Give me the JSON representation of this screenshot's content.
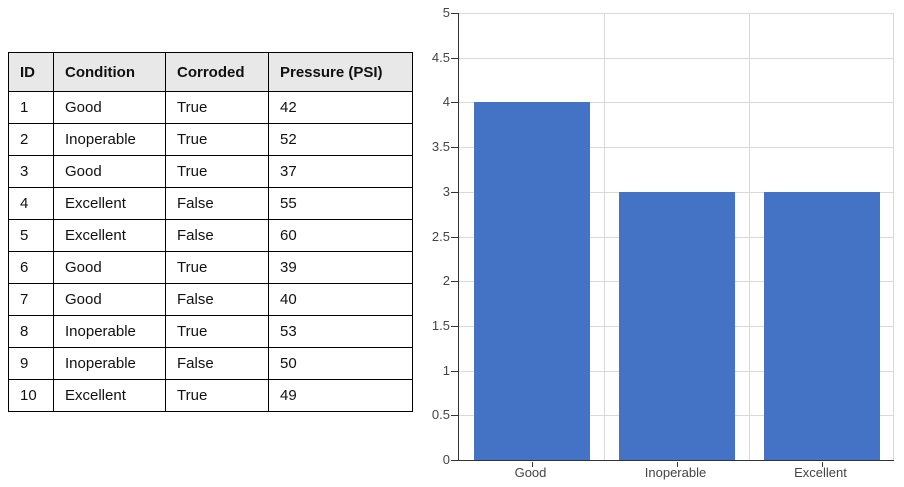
{
  "table": {
    "columns": [
      "ID",
      "Condition",
      "Corroded",
      "Pressure (PSI)"
    ],
    "rows": [
      [
        "1",
        "Good",
        "True",
        "42"
      ],
      [
        "2",
        "Inoperable",
        "True",
        "52"
      ],
      [
        "3",
        "Good",
        "True",
        "37"
      ],
      [
        "4",
        "Excellent",
        "False",
        "55"
      ],
      [
        "5",
        "Excellent",
        "False",
        "60"
      ],
      [
        "6",
        "Good",
        "True",
        "39"
      ],
      [
        "7",
        "Good",
        "False",
        "40"
      ],
      [
        "8",
        "Inoperable",
        "True",
        "53"
      ],
      [
        "9",
        "Inoperable",
        "False",
        "50"
      ],
      [
        "10",
        "Excellent",
        "True",
        "49"
      ]
    ],
    "header_bg": "#E8E8E8",
    "border_color": "#000000",
    "text_color": "#111111"
  },
  "chart_data": {
    "type": "bar",
    "title": "",
    "categories": [
      "Good",
      "Inoperable",
      "Excellent"
    ],
    "values": [
      4,
      3,
      3
    ],
    "xlabel": "",
    "ylabel": "",
    "ylim": [
      0,
      5
    ],
    "ytick_step": 0.5,
    "ytick_labels": [
      "0",
      "0.5",
      "1",
      "1.5",
      "2",
      "2.5",
      "3",
      "3.5",
      "4",
      "4.5",
      "5"
    ],
    "grid": "on",
    "legend": "none",
    "bar_color": "#4472C4",
    "gridline_color": "#D9D9D9",
    "axis_color": "#333333",
    "tick_label_color": "#444444"
  }
}
